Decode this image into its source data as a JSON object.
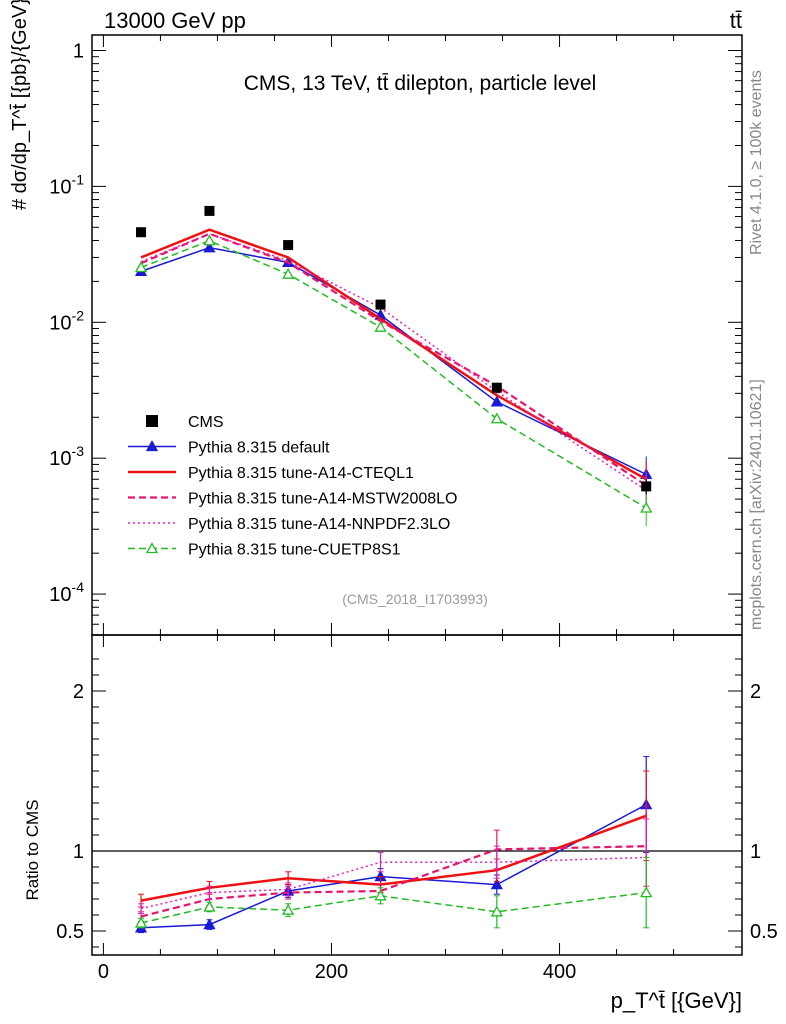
{
  "header": {
    "energy_label": "13000 GeV pp",
    "process_label": "tt̄"
  },
  "side_text": {
    "rivet": "Rivet 4.1.0, ≥ 100k events",
    "source": "mcplots.cern.ch [arXiv:2401.10621]"
  },
  "chart_data": {
    "type": "line",
    "title": "CMS, 13 TeV, tt̄ dilepton, particle level",
    "analysis_id": "(CMS_2018_I1703993)",
    "xlabel": "p_T^t̄ [{GeV}]",
    "ylabel": "# dσ/dp_T^t̄ [{pb}/{GeV}]",
    "ratio_ylabel": "Ratio to CMS",
    "xlim": [
      -10,
      560
    ],
    "ylim_log": [
      5e-05,
      1.3
    ],
    "ratio_ylim": [
      0.35,
      2.35
    ],
    "x_ticks": [
      "0",
      "200",
      "400"
    ],
    "y_ticks": [
      "1",
      "10^-1",
      "10^-2",
      "10^-3",
      "10^-4"
    ],
    "ratio_ticks": [
      "0.5",
      "1",
      "2"
    ],
    "x": [
      33,
      93,
      162,
      243,
      345,
      476
    ],
    "data": {
      "name": "CMS",
      "values": [
        0.046,
        0.066,
        0.037,
        0.0135,
        0.0033,
        0.00062
      ],
      "errors": [
        0.003,
        0.004,
        0.002,
        0.0008,
        0.0003,
        8e-05
      ]
    },
    "series": [
      {
        "name": "Pythia 8.315 default",
        "color": "#1a1ad6",
        "dash": "solid",
        "marker": "triangle-filled",
        "values": [
          0.0237,
          0.0354,
          0.0276,
          0.0113,
          0.0026,
          0.00076
        ],
        "ratio": [
          0.52,
          0.54,
          0.75,
          0.84,
          0.79,
          1.29
        ],
        "ratio_err": [
          0.03,
          0.03,
          0.04,
          0.05,
          0.06,
          0.3
        ]
      },
      {
        "name": "Pythia 8.315 tune-A14-CTEQL1",
        "color": "#ee1111",
        "dash": "solid",
        "marker": "none",
        "values": [
          0.03,
          0.048,
          0.03,
          0.0106,
          0.0029,
          0.0007
        ],
        "ratio": [
          0.69,
          0.77,
          0.83,
          0.79,
          0.88,
          1.22
        ],
        "ratio_err": [
          0.04,
          0.04,
          0.04,
          0.05,
          0.07,
          0.28
        ]
      },
      {
        "name": "Pythia 8.315 tune-A14-MSTW2008LO",
        "color": "#e8136b",
        "dash": "dashed",
        "marker": "none",
        "values": [
          0.0272,
          0.0448,
          0.0275,
          0.0102,
          0.0034,
          0.00063
        ],
        "ratio": [
          0.59,
          0.7,
          0.74,
          0.75,
          1.01,
          1.03
        ],
        "ratio_err": [
          0.03,
          0.04,
          0.04,
          0.04,
          0.12,
          0.25
        ]
      },
      {
        "name": "Pythia 8.315 tune-A14-NNPDF2.3LO",
        "color": "#e01fbd",
        "dash": "dotted",
        "marker": "none",
        "values": [
          0.028,
          0.0448,
          0.0283,
          0.0128,
          0.0031,
          0.00058
        ],
        "ratio": [
          0.64,
          0.74,
          0.76,
          0.93,
          0.93,
          0.96
        ],
        "ratio_err": [
          0.03,
          0.04,
          0.04,
          0.06,
          0.1,
          0.24
        ]
      },
      {
        "name": "Pythia 8.315 tune-CUETP8S1",
        "color": "#22bb22",
        "dash": "dashed",
        "marker": "triangle-open",
        "values": [
          0.0253,
          0.0398,
          0.0226,
          0.0092,
          0.00195,
          0.00043
        ],
        "ratio": [
          0.55,
          0.65,
          0.63,
          0.72,
          0.62,
          0.74
        ],
        "ratio_err": [
          0.03,
          0.03,
          0.04,
          0.05,
          0.1,
          0.22
        ]
      }
    ]
  }
}
